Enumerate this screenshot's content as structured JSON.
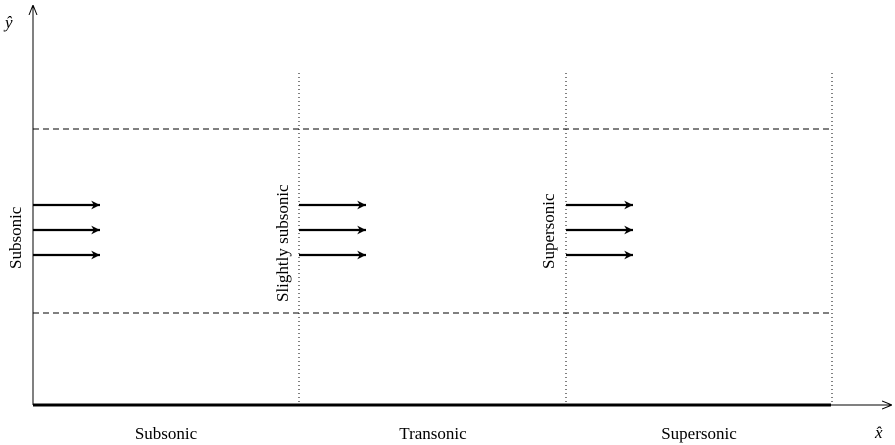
{
  "axes": {
    "y_label": "ŷ",
    "x_label": "x̂"
  },
  "region_labels": [
    "Subsonic",
    "Transonic",
    "Supersonic"
  ],
  "inlet_labels": [
    "Subsonic",
    "Slightly subsonic",
    "Supersonic"
  ],
  "colors": {
    "line": "#000000",
    "background": "#ffffff"
  }
}
